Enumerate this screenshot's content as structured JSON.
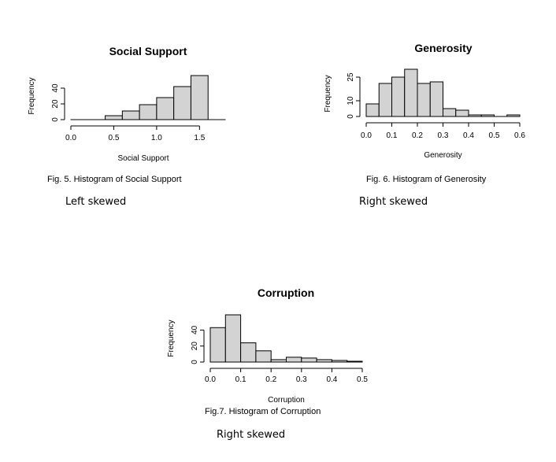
{
  "chart_data": [
    {
      "type": "bar",
      "title": "Social Support",
      "xlabel": "Social Support",
      "ylabel": "Frequency",
      "x_ticks": [
        "0.0",
        "0.5",
        "1.0",
        "1.5"
      ],
      "y_ticks": [
        "0",
        "20",
        "40"
      ],
      "xlim": [
        0,
        1.8
      ],
      "ylim": [
        0,
        60
      ],
      "bins": [
        {
          "x0": 0.0,
          "x1": 0.2,
          "count": 0
        },
        {
          "x0": 0.2,
          "x1": 0.4,
          "count": 0
        },
        {
          "x0": 0.4,
          "x1": 0.6,
          "count": 5
        },
        {
          "x0": 0.6,
          "x1": 0.8,
          "count": 11
        },
        {
          "x0": 0.8,
          "x1": 1.0,
          "count": 19
        },
        {
          "x0": 1.0,
          "x1": 1.2,
          "count": 28
        },
        {
          "x0": 1.2,
          "x1": 1.4,
          "count": 42
        },
        {
          "x0": 1.4,
          "x1": 1.6,
          "count": 56
        },
        {
          "x0": 1.6,
          "x1": 1.8,
          "count": 0
        }
      ]
    },
    {
      "type": "bar",
      "title": "Generosity",
      "xlabel": "Generosity",
      "ylabel": "Frequency",
      "x_ticks": [
        "0.0",
        "0.1",
        "0.2",
        "0.3",
        "0.4",
        "0.5",
        "0.6"
      ],
      "y_ticks": [
        "0",
        "10",
        "25"
      ],
      "xlim": [
        0,
        0.6
      ],
      "ylim": [
        0,
        30
      ],
      "bins": [
        {
          "x0": 0.0,
          "x1": 0.05,
          "count": 8
        },
        {
          "x0": 0.05,
          "x1": 0.1,
          "count": 21
        },
        {
          "x0": 0.1,
          "x1": 0.15,
          "count": 25
        },
        {
          "x0": 0.15,
          "x1": 0.2,
          "count": 30
        },
        {
          "x0": 0.2,
          "x1": 0.25,
          "count": 21
        },
        {
          "x0": 0.25,
          "x1": 0.3,
          "count": 22
        },
        {
          "x0": 0.3,
          "x1": 0.35,
          "count": 5
        },
        {
          "x0": 0.35,
          "x1": 0.4,
          "count": 4
        },
        {
          "x0": 0.4,
          "x1": 0.45,
          "count": 1
        },
        {
          "x0": 0.45,
          "x1": 0.5,
          "count": 1
        },
        {
          "x0": 0.5,
          "x1": 0.55,
          "count": 0
        },
        {
          "x0": 0.55,
          "x1": 0.6,
          "count": 1
        }
      ]
    },
    {
      "type": "bar",
      "title": "Corruption",
      "xlabel": "Corruption",
      "ylabel": "Frequency",
      "x_ticks": [
        "0.0",
        "0.1",
        "0.2",
        "0.3",
        "0.4",
        "0.5"
      ],
      "y_ticks": [
        "0",
        "20",
        "40"
      ],
      "xlim": [
        0,
        0.5
      ],
      "ylim": [
        0,
        60
      ],
      "bins": [
        {
          "x0": 0.0,
          "x1": 0.05,
          "count": 43
        },
        {
          "x0": 0.05,
          "x1": 0.1,
          "count": 59
        },
        {
          "x0": 0.1,
          "x1": 0.15,
          "count": 24
        },
        {
          "x0": 0.15,
          "x1": 0.2,
          "count": 14
        },
        {
          "x0": 0.2,
          "x1": 0.25,
          "count": 3
        },
        {
          "x0": 0.25,
          "x1": 0.3,
          "count": 6
        },
        {
          "x0": 0.3,
          "x1": 0.35,
          "count": 5
        },
        {
          "x0": 0.35,
          "x1": 0.4,
          "count": 3
        },
        {
          "x0": 0.4,
          "x1": 0.45,
          "count": 2
        },
        {
          "x0": 0.45,
          "x1": 0.5,
          "count": 1
        }
      ]
    }
  ],
  "captions": {
    "fig5": "Fig. 5. Histogram of Social Support",
    "fig6": "Fig. 6. Histogram of Generosity",
    "fig7": "Fig.7. Histogram of Corruption"
  },
  "notes": {
    "fig5": "Left skewed",
    "fig6": "Right skewed",
    "fig7": "Right skewed"
  },
  "colors": {
    "bar_fill": "#d3d3d3",
    "bar_stroke": "#000000"
  }
}
